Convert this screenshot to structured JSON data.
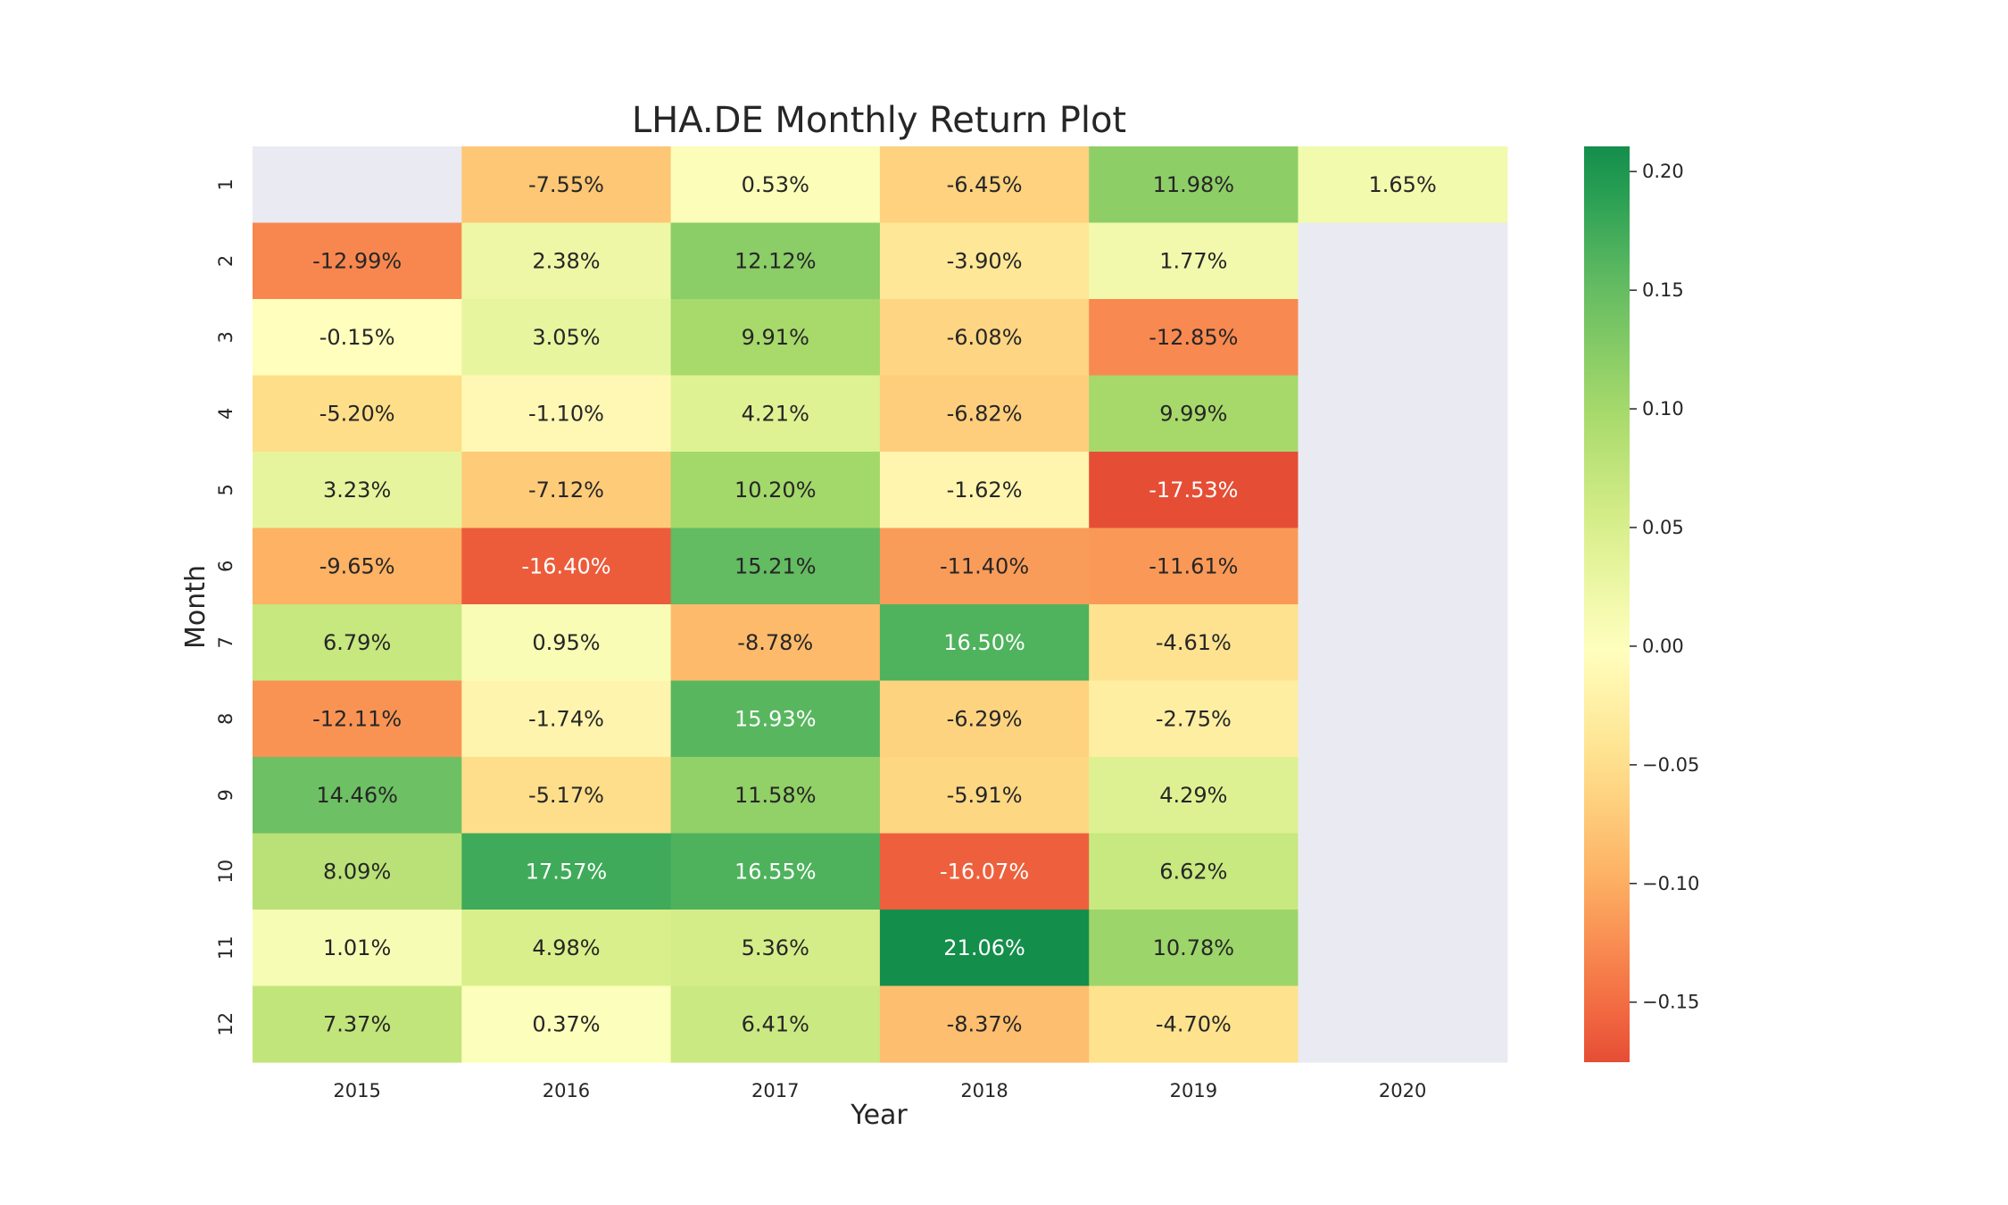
{
  "chart_data": {
    "type": "heatmap",
    "title": "LHA.DE Monthly Return Plot",
    "xlabel": "Year",
    "ylabel": "Month",
    "x": [
      "2015",
      "2016",
      "2017",
      "2018",
      "2019",
      "2020"
    ],
    "y": [
      "1",
      "2",
      "3",
      "4",
      "5",
      "6",
      "7",
      "8",
      "9",
      "10",
      "11",
      "12"
    ],
    "values": [
      [
        null,
        -0.0755,
        0.0053,
        -0.0645,
        0.1198,
        0.0165
      ],
      [
        -0.1299,
        0.0238,
        0.1212,
        -0.039,
        0.0177,
        null
      ],
      [
        -0.0015,
        0.0305,
        0.0991,
        -0.0608,
        -0.1285,
        null
      ],
      [
        -0.052,
        -0.011,
        0.0421,
        -0.0682,
        0.0999,
        null
      ],
      [
        0.0323,
        -0.0712,
        0.102,
        -0.0162,
        -0.1753,
        null
      ],
      [
        -0.0965,
        -0.164,
        0.1521,
        -0.114,
        -0.1161,
        null
      ],
      [
        0.0679,
        0.0095,
        -0.0878,
        0.165,
        -0.0461,
        null
      ],
      [
        -0.1211,
        -0.0174,
        0.1593,
        -0.0629,
        -0.0275,
        null
      ],
      [
        0.1446,
        -0.0517,
        0.1158,
        -0.0591,
        0.0429,
        null
      ],
      [
        0.0809,
        0.1757,
        0.1655,
        -0.1607,
        0.0662,
        null
      ],
      [
        0.0101,
        0.0498,
        0.0536,
        0.2106,
        0.1078,
        null
      ],
      [
        0.0737,
        0.0037,
        0.0641,
        -0.0837,
        -0.047,
        null
      ]
    ],
    "labels": [
      [
        "",
        "-7.55%",
        "0.53%",
        "-6.45%",
        "11.98%",
        "1.65%"
      ],
      [
        "-12.99%",
        "2.38%",
        "12.12%",
        "-3.90%",
        "1.77%",
        ""
      ],
      [
        "-0.15%",
        "3.05%",
        "9.91%",
        "-6.08%",
        "-12.85%",
        ""
      ],
      [
        "-5.20%",
        "-1.10%",
        "4.21%",
        "-6.82%",
        "9.99%",
        ""
      ],
      [
        "3.23%",
        "-7.12%",
        "10.20%",
        "-1.62%",
        "-17.53%",
        ""
      ],
      [
        "-9.65%",
        "-16.40%",
        "15.21%",
        "-11.40%",
        "-11.61%",
        ""
      ],
      [
        "6.79%",
        "0.95%",
        "-8.78%",
        "16.50%",
        "-4.61%",
        ""
      ],
      [
        "-12.11%",
        "-1.74%",
        "15.93%",
        "-6.29%",
        "-2.75%",
        ""
      ],
      [
        "14.46%",
        "-5.17%",
        "11.58%",
        "-5.91%",
        "4.29%",
        ""
      ],
      [
        "8.09%",
        "17.57%",
        "16.55%",
        "-16.07%",
        "6.62%",
        ""
      ],
      [
        "1.01%",
        "4.98%",
        "5.36%",
        "21.06%",
        "10.78%",
        ""
      ],
      [
        "7.37%",
        "0.37%",
        "6.41%",
        "-8.37%",
        "-4.70%",
        ""
      ]
    ],
    "colormap": "RdYlGn",
    "vmin": -0.1753,
    "vmax": 0.2106,
    "colorbar_ticks": [
      "0.20",
      "0.15",
      "0.10",
      "0.05",
      "0.00",
      "−0.05",
      "−0.10",
      "−0.15"
    ],
    "colorbar_tick_values": [
      0.2,
      0.15,
      0.1,
      0.05,
      0.0,
      -0.05,
      -0.1,
      -0.15
    ],
    "missing_color": "#eaeaf2",
    "grid": false,
    "legend": "colorbar-right"
  }
}
